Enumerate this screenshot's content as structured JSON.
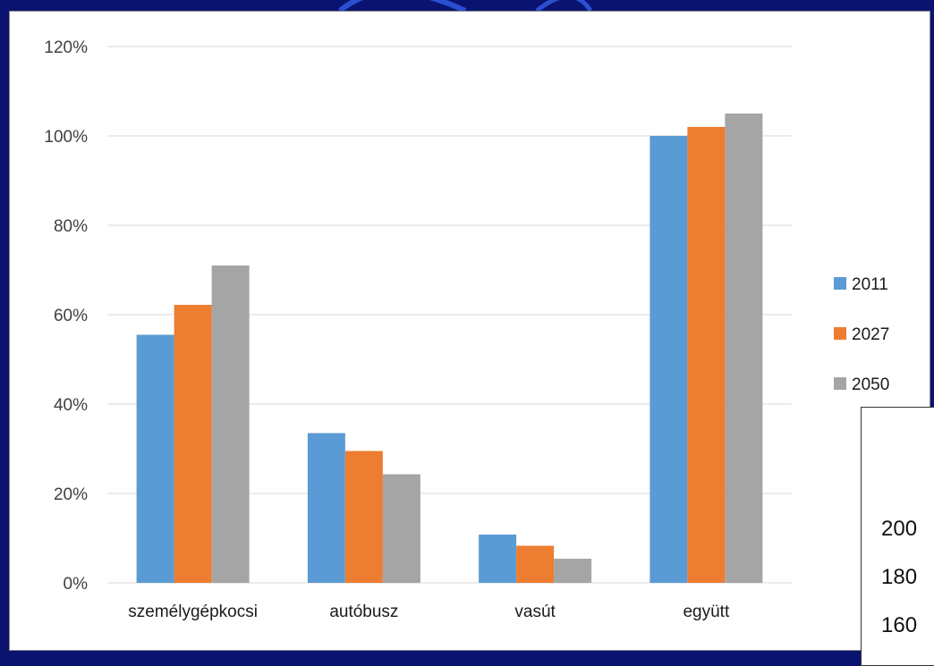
{
  "chart_data": {
    "type": "bar",
    "categories": [
      "személygépkocsi",
      "autóbusz",
      "vasút",
      "együtt"
    ],
    "series": [
      {
        "name": "2011",
        "color": "#5b9bd5",
        "values": [
          55.5,
          33.5,
          10.8,
          100.0
        ]
      },
      {
        "name": "2027",
        "color": "#ed7d31",
        "values": [
          62.2,
          29.5,
          8.3,
          102.0
        ]
      },
      {
        "name": "2050",
        "color": "#a5a5a5",
        "values": [
          71.0,
          24.3,
          5.4,
          105.0
        ]
      }
    ],
    "y_ticks": [
      "0%",
      "20%",
      "40%",
      "60%",
      "80%",
      "100%",
      "120%"
    ],
    "ylim": [
      0,
      120
    ],
    "grid": true,
    "legend_position": "right"
  },
  "inset": {
    "partial_labels": [
      "200",
      "180",
      "160"
    ]
  }
}
